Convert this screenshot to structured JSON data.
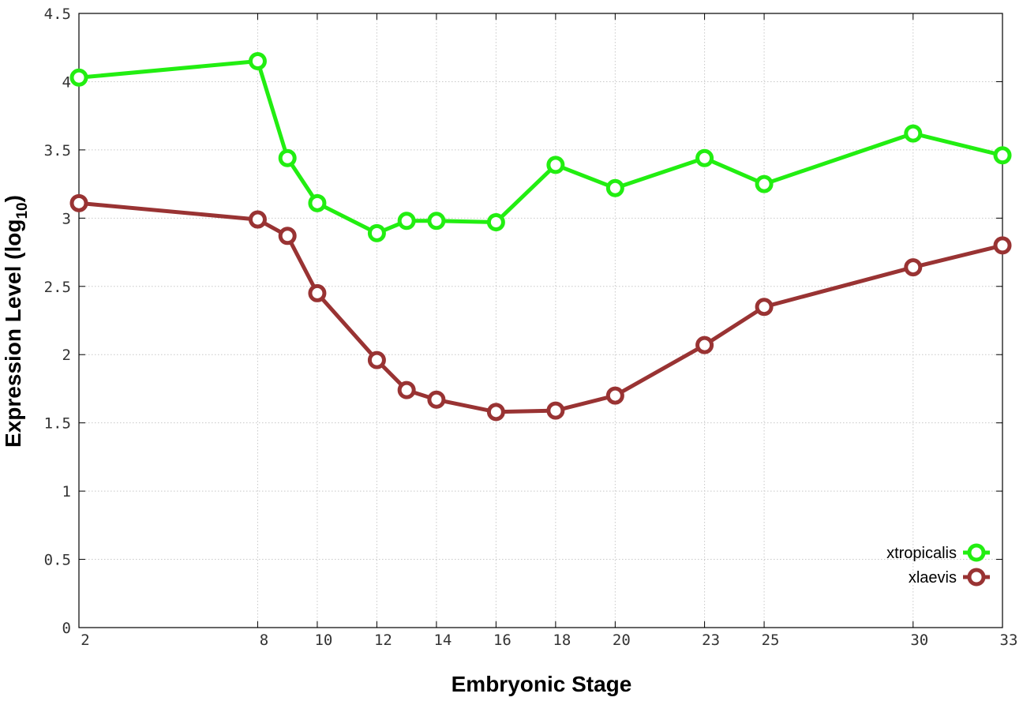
{
  "chart_data": {
    "type": "line",
    "xlabel": "Embryonic Stage",
    "ylabel": "Expression Level (log",
    "ylabel_sub": "10",
    "ylabel_close": ")",
    "xlim": [
      2,
      33
    ],
    "ylim": [
      0,
      4.5
    ],
    "x_ticks": [
      2,
      8,
      10,
      12,
      14,
      16,
      18,
      20,
      23,
      25,
      30,
      33
    ],
    "x_tick_labels": [
      "2",
      "8",
      "10",
      "12",
      "14",
      "16",
      "18",
      "20",
      "23",
      "25",
      "30",
      "33"
    ],
    "y_ticks": [
      0,
      0.5,
      1,
      1.5,
      2,
      2.5,
      3,
      3.5,
      4,
      4.5
    ],
    "y_tick_labels": [
      "0",
      "0.5",
      "1",
      "1.5",
      "2",
      "2.5",
      "3",
      "3.5",
      "4",
      "4.5"
    ],
    "grid": true,
    "legend_position": "bottom-right",
    "x": [
      2,
      8,
      9,
      10,
      12,
      13,
      14,
      16,
      18,
      20,
      23,
      25,
      30,
      33
    ],
    "series": [
      {
        "name": "xtropicalis",
        "color": "#22ee11",
        "values": [
          4.03,
          4.15,
          3.44,
          3.11,
          2.89,
          2.98,
          2.98,
          2.97,
          3.39,
          3.22,
          3.44,
          3.25,
          3.62,
          3.46
        ]
      },
      {
        "name": "xlaevis",
        "color": "#993333",
        "values": [
          3.11,
          2.99,
          2.87,
          2.45,
          1.96,
          1.74,
          1.67,
          1.58,
          1.59,
          1.7,
          2.07,
          2.35,
          2.64,
          2.8
        ]
      }
    ]
  }
}
